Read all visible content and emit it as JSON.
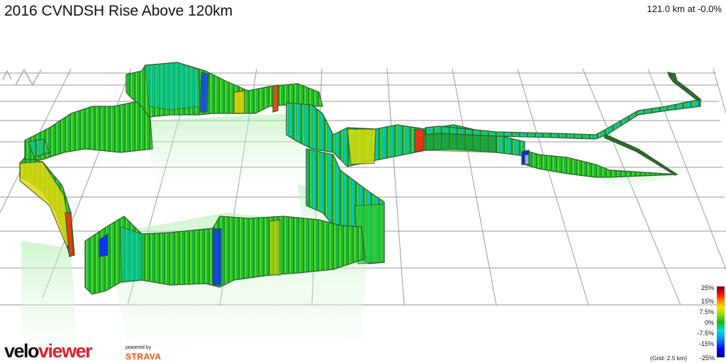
{
  "title": "2016 CVNDSH Rise Above 120km",
  "readout": "121.0 km at -0.0%",
  "legend": {
    "ticks": [
      "25%",
      "15%",
      "7.5%",
      "0%",
      "-7.5%",
      "-15%",
      "-25%"
    ],
    "grid_note": "(Grid: 2.5 km)"
  },
  "brand": {
    "part1": "velo",
    "part2": "viewer",
    "powered": "powered by",
    "strava": "STRAVA"
  },
  "colors": {
    "grid": "#9a9a9a",
    "route_edge": "#2d5a2d",
    "flat": "#22c022",
    "up": "#e8e000",
    "steep": "#ff2200",
    "down": "#00c8c0",
    "steep_down": "#0022ff"
  }
}
